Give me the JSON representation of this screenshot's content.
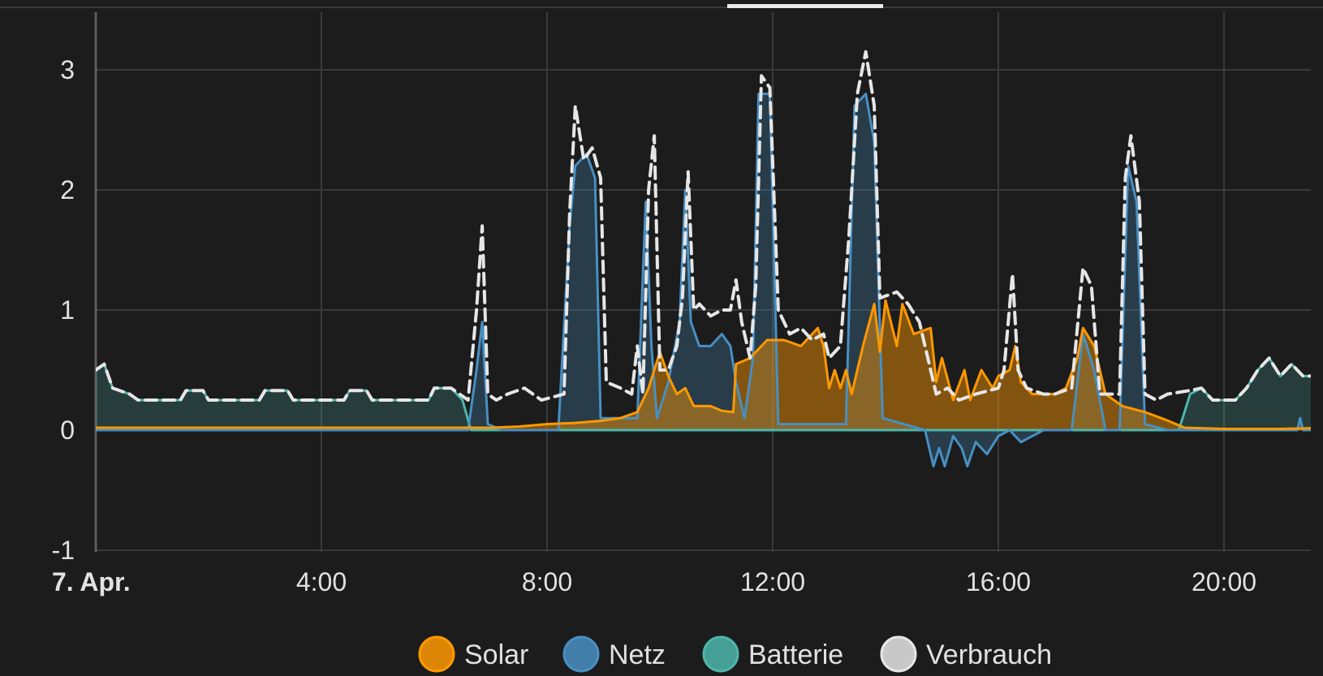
{
  "chart_data": {
    "type": "area",
    "title": "",
    "xlabel": "",
    "ylabel": "",
    "x_unit": "hour",
    "xlim": [
      0,
      21.9
    ],
    "ylim": [
      -1,
      3.4
    ],
    "y_ticks": [
      -1,
      0,
      1,
      2,
      3
    ],
    "x_ticks": [
      {
        "value": 0,
        "label": "7. Apr."
      },
      {
        "value": 4,
        "label": "4:00"
      },
      {
        "value": 8,
        "label": "8:00"
      },
      {
        "value": 12,
        "label": "12:00"
      },
      {
        "value": 16,
        "label": "16:00"
      },
      {
        "value": 20,
        "label": "20:00"
      }
    ],
    "grid": true,
    "legend_position": "bottom",
    "colors": {
      "background": "#1c1c1c",
      "grid": "#3a3a3a",
      "axis": "#5c5c5c",
      "solar": "#ff9800",
      "netz": "#488fc2",
      "batterie": "#4db6ac",
      "verbrauch": "#e6e6e6"
    },
    "series": [
      {
        "name": "Solar",
        "color": "#ff9800",
        "points": [
          [
            0,
            0.02
          ],
          [
            6.5,
            0.02
          ],
          [
            7,
            0.02
          ],
          [
            7.5,
            0.03
          ],
          [
            8,
            0.05
          ],
          [
            8.5,
            0.06
          ],
          [
            9,
            0.08
          ],
          [
            9.3,
            0.1
          ],
          [
            9.6,
            0.15
          ],
          [
            9.8,
            0.35
          ],
          [
            10,
            0.65
          ],
          [
            10.15,
            0.45
          ],
          [
            10.3,
            0.3
          ],
          [
            10.45,
            0.35
          ],
          [
            10.6,
            0.2
          ],
          [
            10.9,
            0.2
          ],
          [
            11.1,
            0.16
          ],
          [
            11.3,
            0.15
          ],
          [
            11.35,
            0.55
          ],
          [
            11.6,
            0.6
          ],
          [
            11.9,
            0.75
          ],
          [
            12.2,
            0.75
          ],
          [
            12.5,
            0.7
          ],
          [
            12.8,
            0.85
          ],
          [
            12.9,
            0.7
          ],
          [
            13.0,
            0.35
          ],
          [
            13.1,
            0.5
          ],
          [
            13.2,
            0.35
          ],
          [
            13.3,
            0.5
          ],
          [
            13.4,
            0.3
          ],
          [
            13.6,
            0.7
          ],
          [
            13.8,
            1.05
          ],
          [
            13.9,
            0.65
          ],
          [
            14.0,
            1.08
          ],
          [
            14.2,
            0.7
          ],
          [
            14.3,
            1.05
          ],
          [
            14.5,
            0.8
          ],
          [
            14.8,
            0.85
          ],
          [
            14.9,
            0.4
          ],
          [
            15.0,
            0.6
          ],
          [
            15.2,
            0.25
          ],
          [
            15.4,
            0.5
          ],
          [
            15.5,
            0.25
          ],
          [
            15.7,
            0.5
          ],
          [
            15.9,
            0.35
          ],
          [
            16.0,
            0.45
          ],
          [
            16.2,
            0.5
          ],
          [
            16.3,
            0.7
          ],
          [
            16.4,
            0.4
          ],
          [
            16.6,
            0.3
          ],
          [
            16.8,
            0.3
          ],
          [
            17.0,
            0.3
          ],
          [
            17.2,
            0.35
          ],
          [
            17.4,
            0.6
          ],
          [
            17.5,
            0.85
          ],
          [
            17.7,
            0.7
          ],
          [
            17.9,
            0.3
          ],
          [
            18.2,
            0.2
          ],
          [
            18.6,
            0.15
          ],
          [
            19,
            0.08
          ],
          [
            19.3,
            0.02
          ],
          [
            20,
            0.01
          ],
          [
            21,
            0.01
          ],
          [
            21.9,
            0.02
          ]
        ]
      },
      {
        "name": "Netz",
        "color": "#488fc2",
        "points": [
          [
            0,
            0
          ],
          [
            6.6,
            0
          ],
          [
            6.75,
            0.5
          ],
          [
            6.85,
            0.9
          ],
          [
            6.95,
            0.05
          ],
          [
            7.2,
            0
          ],
          [
            8.2,
            0
          ],
          [
            8.4,
            1.7
          ],
          [
            8.5,
            2.2
          ],
          [
            8.7,
            2.3
          ],
          [
            8.85,
            2.1
          ],
          [
            8.95,
            0.1
          ],
          [
            9.6,
            0.1
          ],
          [
            9.75,
            1.9
          ],
          [
            9.85,
            0.7
          ],
          [
            9.95,
            0.1
          ],
          [
            10.15,
            0.4
          ],
          [
            10.35,
            0.9
          ],
          [
            10.45,
            2.0
          ],
          [
            10.55,
            0.9
          ],
          [
            10.7,
            0.7
          ],
          [
            10.9,
            0.7
          ],
          [
            11.1,
            0.8
          ],
          [
            11.25,
            0.7
          ],
          [
            11.35,
            0.4
          ],
          [
            11.5,
            0.1
          ],
          [
            11.65,
            0.6
          ],
          [
            11.75,
            2.8
          ],
          [
            11.95,
            2.8
          ],
          [
            12.1,
            0.05
          ],
          [
            13.3,
            0.05
          ],
          [
            13.45,
            2.7
          ],
          [
            13.65,
            2.8
          ],
          [
            13.8,
            2.4
          ],
          [
            13.95,
            0.1
          ],
          [
            14.7,
            0
          ],
          [
            14.85,
            -0.3
          ],
          [
            14.95,
            -0.15
          ],
          [
            15.05,
            -0.3
          ],
          [
            15.2,
            -0.05
          ],
          [
            15.35,
            -0.15
          ],
          [
            15.45,
            -0.3
          ],
          [
            15.6,
            -0.1
          ],
          [
            15.8,
            -0.2
          ],
          [
            16.0,
            -0.05
          ],
          [
            16.2,
            0
          ],
          [
            16.4,
            -0.1
          ],
          [
            16.6,
            -0.05
          ],
          [
            16.8,
            0
          ],
          [
            17,
            0
          ],
          [
            17.3,
            0
          ],
          [
            17.5,
            0.8
          ],
          [
            17.7,
            0.5
          ],
          [
            17.9,
            0
          ],
          [
            18.15,
            0
          ],
          [
            18.3,
            2.2
          ],
          [
            18.45,
            1.9
          ],
          [
            18.6,
            0.05
          ],
          [
            19,
            0
          ],
          [
            21.3,
            0
          ],
          [
            21.35,
            0.1
          ],
          [
            21.4,
            0
          ],
          [
            21.9,
            0
          ]
        ]
      },
      {
        "name": "Batterie",
        "color": "#4db6ac",
        "points": [
          [
            0,
            0.5
          ],
          [
            0.15,
            0.55
          ],
          [
            0.3,
            0.35
          ],
          [
            0.6,
            0.3
          ],
          [
            0.75,
            0.25
          ],
          [
            1.5,
            0.25
          ],
          [
            1.6,
            0.33
          ],
          [
            1.9,
            0.33
          ],
          [
            2.0,
            0.25
          ],
          [
            2.9,
            0.25
          ],
          [
            3.0,
            0.33
          ],
          [
            3.4,
            0.33
          ],
          [
            3.5,
            0.25
          ],
          [
            4.4,
            0.25
          ],
          [
            4.5,
            0.33
          ],
          [
            4.8,
            0.33
          ],
          [
            4.9,
            0.25
          ],
          [
            5.9,
            0.25
          ],
          [
            6.0,
            0.35
          ],
          [
            6.3,
            0.35
          ],
          [
            6.5,
            0.25
          ],
          [
            6.65,
            0
          ],
          [
            7.2,
            0
          ],
          [
            19.2,
            0
          ],
          [
            19.4,
            0.3
          ],
          [
            19.6,
            0.35
          ],
          [
            19.8,
            0.25
          ],
          [
            20.2,
            0.25
          ],
          [
            20.4,
            0.35
          ],
          [
            20.6,
            0.5
          ],
          [
            20.8,
            0.6
          ],
          [
            21,
            0.45
          ],
          [
            21.2,
            0.55
          ],
          [
            21.4,
            0.45
          ],
          [
            21.6,
            0.45
          ],
          [
            21.9,
            0.62
          ]
        ]
      },
      {
        "name": "Verbrauch",
        "color": "#e6e6e6",
        "points": [
          [
            0,
            0.5
          ],
          [
            0.15,
            0.55
          ],
          [
            0.3,
            0.35
          ],
          [
            0.6,
            0.3
          ],
          [
            0.75,
            0.25
          ],
          [
            1.5,
            0.25
          ],
          [
            1.6,
            0.33
          ],
          [
            1.9,
            0.33
          ],
          [
            2.0,
            0.25
          ],
          [
            2.9,
            0.25
          ],
          [
            3.0,
            0.33
          ],
          [
            3.4,
            0.33
          ],
          [
            3.5,
            0.25
          ],
          [
            4.4,
            0.25
          ],
          [
            4.5,
            0.33
          ],
          [
            4.8,
            0.33
          ],
          [
            4.9,
            0.25
          ],
          [
            5.9,
            0.25
          ],
          [
            6.0,
            0.35
          ],
          [
            6.3,
            0.35
          ],
          [
            6.6,
            0.25
          ],
          [
            6.75,
            1.0
          ],
          [
            6.85,
            1.7
          ],
          [
            6.95,
            0.3
          ],
          [
            7.1,
            0.25
          ],
          [
            7.3,
            0.3
          ],
          [
            7.6,
            0.35
          ],
          [
            7.9,
            0.25
          ],
          [
            8.3,
            0.3
          ],
          [
            8.4,
            1.8
          ],
          [
            8.5,
            2.7
          ],
          [
            8.65,
            2.25
          ],
          [
            8.8,
            2.35
          ],
          [
            8.95,
            2.1
          ],
          [
            9.05,
            0.4
          ],
          [
            9.3,
            0.35
          ],
          [
            9.5,
            0.3
          ],
          [
            9.6,
            0.7
          ],
          [
            9.7,
            0.3
          ],
          [
            9.8,
            2.0
          ],
          [
            9.9,
            2.45
          ],
          [
            10.0,
            0.5
          ],
          [
            10.15,
            0.5
          ],
          [
            10.3,
            0.7
          ],
          [
            10.4,
            1.1
          ],
          [
            10.5,
            2.15
          ],
          [
            10.6,
            1.0
          ],
          [
            10.7,
            1.05
          ],
          [
            10.9,
            0.95
          ],
          [
            11.1,
            1.0
          ],
          [
            11.25,
            1.0
          ],
          [
            11.35,
            1.25
          ],
          [
            11.45,
            0.9
          ],
          [
            11.6,
            0.6
          ],
          [
            11.7,
            1.2
          ],
          [
            11.8,
            2.95
          ],
          [
            11.95,
            2.85
          ],
          [
            12.1,
            1.0
          ],
          [
            12.3,
            0.8
          ],
          [
            12.5,
            0.85
          ],
          [
            12.7,
            0.75
          ],
          [
            12.9,
            0.8
          ],
          [
            13.0,
            0.6
          ],
          [
            13.2,
            0.7
          ],
          [
            13.35,
            1.6
          ],
          [
            13.5,
            2.8
          ],
          [
            13.65,
            3.15
          ],
          [
            13.8,
            2.7
          ],
          [
            13.9,
            1.1
          ],
          [
            14.2,
            1.15
          ],
          [
            14.4,
            1.05
          ],
          [
            14.6,
            0.9
          ],
          [
            14.8,
            0.5
          ],
          [
            14.9,
            0.3
          ],
          [
            15.1,
            0.35
          ],
          [
            15.3,
            0.25
          ],
          [
            15.6,
            0.3
          ],
          [
            16.0,
            0.35
          ],
          [
            16.1,
            0.5
          ],
          [
            16.25,
            1.3
          ],
          [
            16.35,
            0.5
          ],
          [
            16.5,
            0.35
          ],
          [
            16.8,
            0.3
          ],
          [
            17.0,
            0.3
          ],
          [
            17.3,
            0.35
          ],
          [
            17.5,
            1.35
          ],
          [
            17.65,
            1.2
          ],
          [
            17.8,
            0.3
          ],
          [
            18.15,
            0.3
          ],
          [
            18.25,
            2.1
          ],
          [
            18.35,
            2.45
          ],
          [
            18.5,
            1.9
          ],
          [
            18.6,
            0.3
          ],
          [
            18.8,
            0.25
          ],
          [
            19,
            0.3
          ],
          [
            19.4,
            0.33
          ],
          [
            19.6,
            0.35
          ],
          [
            19.8,
            0.25
          ],
          [
            20.2,
            0.25
          ],
          [
            20.4,
            0.35
          ],
          [
            20.6,
            0.5
          ],
          [
            20.8,
            0.6
          ],
          [
            21,
            0.45
          ],
          [
            21.2,
            0.55
          ],
          [
            21.4,
            0.45
          ],
          [
            21.6,
            0.45
          ],
          [
            21.9,
            0.62
          ]
        ]
      }
    ]
  }
}
